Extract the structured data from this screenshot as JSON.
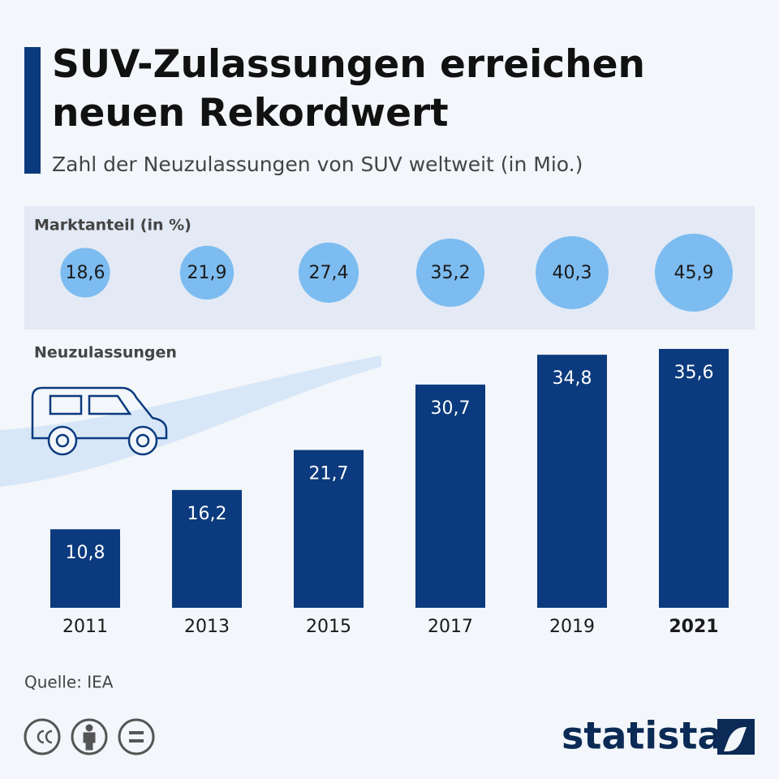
{
  "chart_data": {
    "type": "bar",
    "title": "SUV-Zulassungen erreichen neuen Rekordwert",
    "subtitle": "Zahl der Neuzulassungen von SUV weltweit (in Mio.)",
    "categories": [
      "2011",
      "2013",
      "2015",
      "2017",
      "2019",
      "2021"
    ],
    "series": [
      {
        "name": "Neuzulassungen",
        "color": "#0b3a7e",
        "values": [
          10.8,
          16.2,
          21.7,
          30.7,
          34.8,
          35.6
        ],
        "value_labels": [
          "10,8",
          "16,2",
          "21,7",
          "30,7",
          "34,8",
          "35,6"
        ]
      },
      {
        "name": "Marktanteil (in %)",
        "color": "#7dbcf0",
        "values": [
          18.6,
          21.9,
          27.4,
          35.2,
          40.3,
          45.9
        ],
        "value_labels": [
          "18,6",
          "21,9",
          "27,4",
          "35,2",
          "40,3",
          "45,9"
        ]
      }
    ],
    "source": "Quelle: IEA",
    "brand": "statista"
  }
}
